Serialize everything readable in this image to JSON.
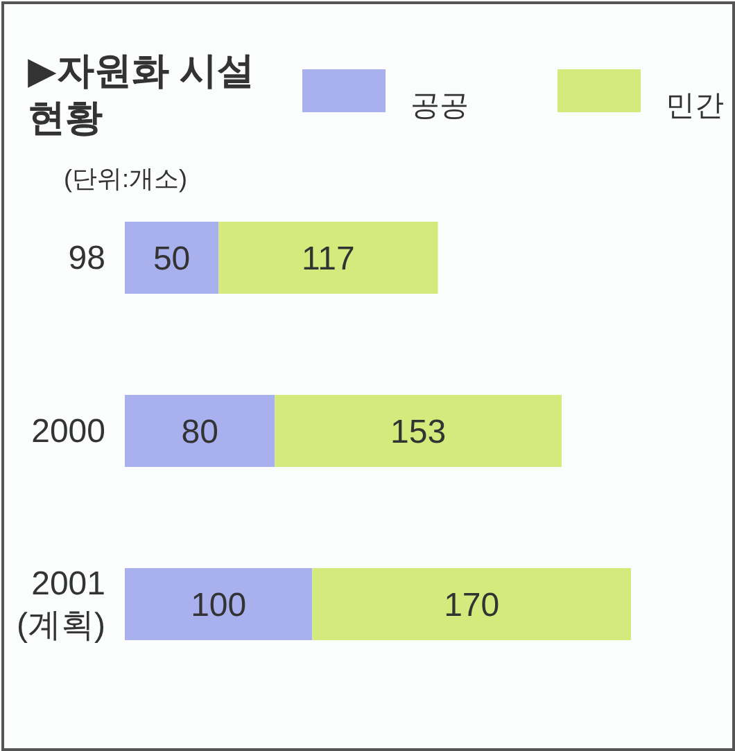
{
  "chart_data": {
    "type": "bar",
    "orientation": "horizontal",
    "stacked": true,
    "title": "▶자원화 시설 현황",
    "subtitle": "(단위:개소)",
    "categories": [
      "98",
      "2000",
      "2001 (계획)"
    ],
    "series": [
      {
        "name": "공공",
        "color": "#a9b0ee",
        "values": [
          50,
          80,
          100
        ]
      },
      {
        "name": "민간",
        "color": "#d5ea7c",
        "values": [
          117,
          153,
          170
        ]
      }
    ],
    "data_labels": true,
    "legend": "top right"
  }
}
